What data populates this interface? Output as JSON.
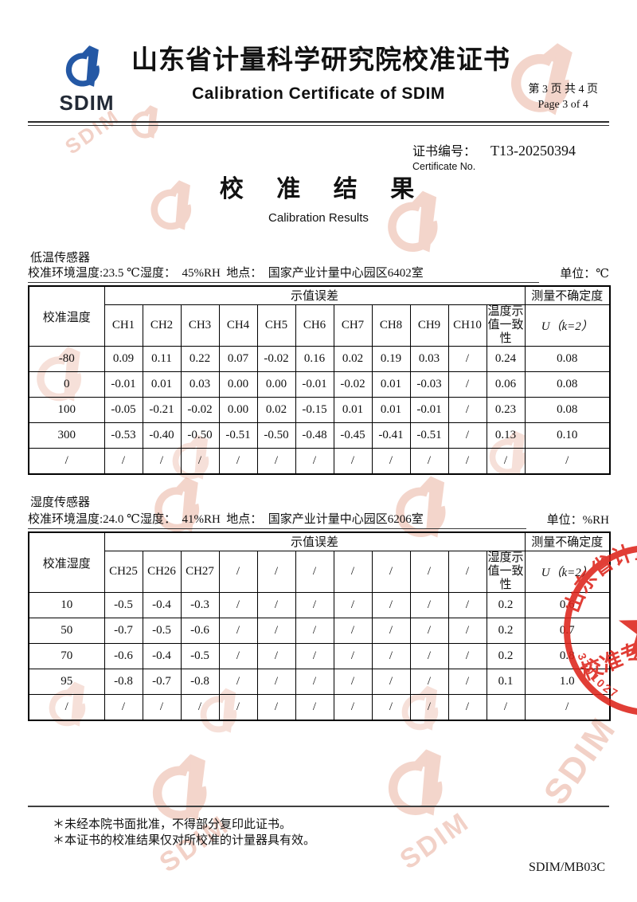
{
  "header": {
    "logo_text": "SDIM",
    "title_cn": "山东省计量科学研究院校准证书",
    "title_en": "Calibration Certificate of SDIM",
    "page_line_cn": "第 3 页 共 4 页",
    "page_line_en": "Page 3 of 4"
  },
  "certificate": {
    "label_cn": "证书编号：",
    "number": "T13-20250394",
    "label_en": "Certificate No."
  },
  "results_title": {
    "cn": "校 准 结 果",
    "en": "Calibration Results"
  },
  "table1": {
    "sensor": "低温传感器",
    "environment": "校准环境温度:23.5 ℃湿度：  45%RH  地点：  国家产业计量中心园区6402室",
    "unit": "单位：℃",
    "row_header": "校准温度",
    "error_header": "示值误差",
    "uncertainty_header": "测量不确定度",
    "consistency_header": "温度示值一致性",
    "u_label": "U（k=2）",
    "channels": [
      "CH1",
      "CH2",
      "CH3",
      "CH4",
      "CH5",
      "CH6",
      "CH7",
      "CH8",
      "CH9",
      "CH10"
    ],
    "rows": [
      {
        "label": "-80",
        "values": [
          "0.09",
          "0.11",
          "0.22",
          "0.07",
          "-0.02",
          "0.16",
          "0.02",
          "0.19",
          "0.03",
          "/"
        ],
        "consistency": "0.24",
        "u": "0.08"
      },
      {
        "label": "0",
        "values": [
          "-0.01",
          "0.01",
          "0.03",
          "0.00",
          "0.00",
          "-0.01",
          "-0.02",
          "0.01",
          "-0.03",
          "/"
        ],
        "consistency": "0.06",
        "u": "0.08"
      },
      {
        "label": "100",
        "values": [
          "-0.05",
          "-0.21",
          "-0.02",
          "0.00",
          "0.02",
          "-0.15",
          "0.01",
          "0.01",
          "-0.01",
          "/"
        ],
        "consistency": "0.23",
        "u": "0.08"
      },
      {
        "label": "300",
        "values": [
          "-0.53",
          "-0.40",
          "-0.50",
          "-0.51",
          "-0.50",
          "-0.48",
          "-0.45",
          "-0.41",
          "-0.51",
          "/"
        ],
        "consistency": "0.13",
        "u": "0.10"
      },
      {
        "label": "/",
        "values": [
          "/",
          "/",
          "/",
          "/",
          "/",
          "/",
          "/",
          "/",
          "/",
          "/"
        ],
        "consistency": "/",
        "u": "/"
      }
    ]
  },
  "table2": {
    "sensor": "湿度传感器",
    "environment": "校准环境温度:24.0 ℃湿度：  41%RH  地点：  国家产业计量中心园区6206室",
    "unit": "单位：%RH",
    "row_header": "校准湿度",
    "error_header": "示值误差",
    "uncertainty_header": "测量不确定度",
    "consistency_header": "湿度示值一致性",
    "u_label": "U（k=2）",
    "channels": [
      "CH25",
      "CH26",
      "CH27",
      "/",
      "/",
      "/",
      "/",
      "/",
      "/",
      "/"
    ],
    "rows": [
      {
        "label": "10",
        "values": [
          "-0.5",
          "-0.4",
          "-0.3",
          "/",
          "/",
          "/",
          "/",
          "/",
          "/",
          "/"
        ],
        "consistency": "0.2",
        "u": "0.6"
      },
      {
        "label": "50",
        "values": [
          "-0.7",
          "-0.5",
          "-0.6",
          "/",
          "/",
          "/",
          "/",
          "/",
          "/",
          "/"
        ],
        "consistency": "0.2",
        "u": "0.7"
      },
      {
        "label": "70",
        "values": [
          "-0.6",
          "-0.4",
          "-0.5",
          "/",
          "/",
          "/",
          "/",
          "/",
          "/",
          "/"
        ],
        "consistency": "0.2",
        "u": "0.8"
      },
      {
        "label": "95",
        "values": [
          "-0.8",
          "-0.7",
          "-0.8",
          "/",
          "/",
          "/",
          "/",
          "/",
          "/",
          "/"
        ],
        "consistency": "0.1",
        "u": "1.0"
      },
      {
        "label": "/",
        "values": [
          "/",
          "/",
          "/",
          "/",
          "/",
          "/",
          "/",
          "/",
          "/",
          "/"
        ],
        "consistency": "/",
        "u": "/"
      }
    ]
  },
  "stamp": {
    "arc_text": "山东省计量",
    "middle_text": "校准专",
    "serial": "3701027"
  },
  "watermark_text": "SDIM",
  "footer": {
    "notes": [
      "＊未经本院书面批准，不得部分复印此证书。",
      "＊本证书的校准结果仅对所校准的计量器具有效。"
    ],
    "doc_code": "SDIM/MB03C"
  }
}
